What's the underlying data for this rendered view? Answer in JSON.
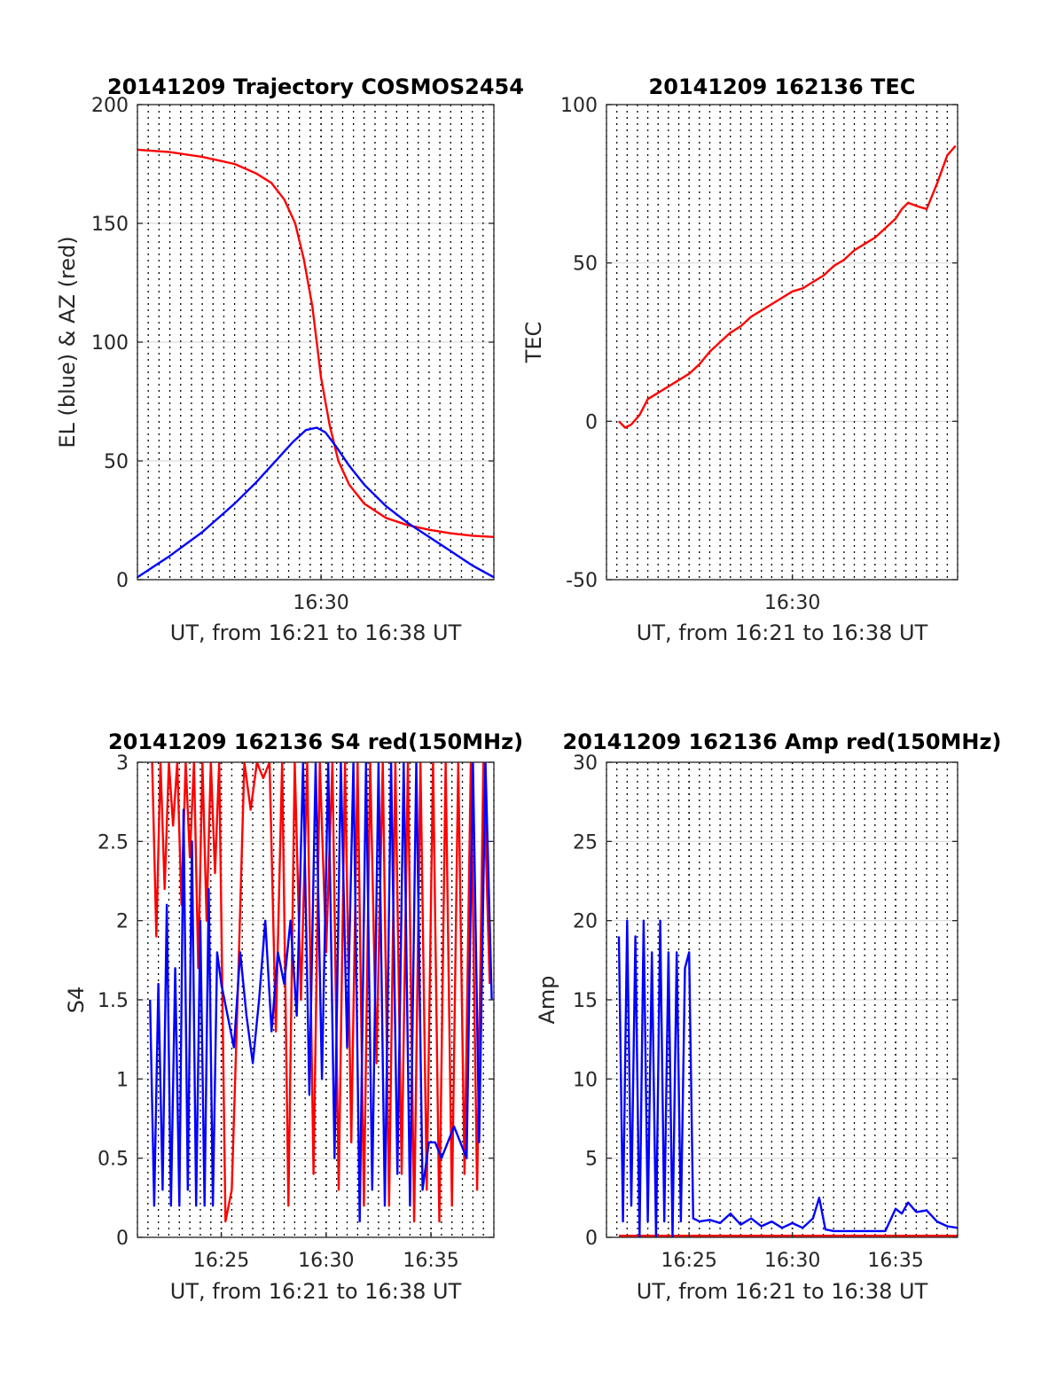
{
  "colors": {
    "el_series": "#0000ff",
    "az_series": "#ff0000",
    "tec_series": "#ff0000",
    "s4_red": "#ff0000",
    "s4_blue": "#0000ff",
    "amp_red": "#ff0000",
    "amp_blue": "#0000ff",
    "grid": "#d9d9d9",
    "vgrid": "#000000"
  },
  "chart_data": [
    {
      "id": "trajectory",
      "type": "line",
      "title": "20141209 Trajectory COSMOS2454",
      "xlabel": "UT, from 16:21 to 16:38 UT",
      "ylabel": "EL (blue) & AZ (red)",
      "xlim_minutes": [
        21.5,
        38.0
      ],
      "ylim": [
        0,
        200
      ],
      "y_ticks": [
        "0",
        "50",
        "100",
        "150",
        "200"
      ],
      "y_tick_values": [
        0,
        50,
        100,
        150,
        200
      ],
      "x_ticks": [
        "16:30"
      ],
      "x_tick_values": [
        30
      ],
      "grid": "vertical dotted every 0.5 min",
      "series": [
        {
          "name": "AZ (red)",
          "color": "#ff0000",
          "x": [
            21.5,
            23,
            24.5,
            26,
            27,
            27.7,
            28.3,
            28.8,
            29.2,
            29.6,
            30,
            30.4,
            30.8,
            31.3,
            32,
            33,
            34,
            35,
            36,
            37,
            38
          ],
          "y": [
            181,
            180,
            178,
            175,
            171,
            167,
            160,
            150,
            135,
            115,
            85,
            65,
            50,
            40,
            32,
            26,
            23,
            21,
            19.5,
            18.5,
            18
          ]
        },
        {
          "name": "EL (blue)",
          "color": "#0000ff",
          "x": [
            21.5,
            23,
            24.5,
            26,
            27,
            28,
            28.7,
            29.3,
            29.8,
            30.2,
            30.7,
            31.3,
            32,
            33,
            34,
            35,
            36,
            37,
            38
          ],
          "y": [
            1,
            10,
            20,
            32,
            41,
            51,
            58,
            63,
            64,
            62,
            56,
            48,
            40,
            31,
            24,
            18,
            12,
            6,
            1
          ]
        }
      ]
    },
    {
      "id": "tec",
      "type": "line",
      "title": "20141209 162136 TEC",
      "xlabel": "UT, from 16:21 to 16:38 UT",
      "ylabel": "TEC",
      "xlim_minutes": [
        21.0,
        38.0
      ],
      "ylim": [
        -50,
        100
      ],
      "y_ticks": [
        "-50",
        "0",
        "50",
        "100"
      ],
      "y_tick_values": [
        -50,
        0,
        50,
        100
      ],
      "x_ticks": [
        "16:30"
      ],
      "x_tick_values": [
        30
      ],
      "series": [
        {
          "name": "TEC",
          "color": "#ff0000",
          "x": [
            21.6,
            21.9,
            22.2,
            22.6,
            23,
            23.5,
            24,
            24.5,
            25,
            25.5,
            26,
            26.5,
            27,
            27.5,
            28,
            28.5,
            29,
            29.5,
            30,
            30.5,
            31,
            31.5,
            32,
            32.5,
            33,
            33.5,
            34,
            34.5,
            35,
            35.3,
            35.6,
            36,
            36.5,
            37,
            37.5,
            37.9
          ],
          "y": [
            0,
            -2,
            -1,
            2,
            7,
            9,
            11,
            13,
            15,
            18,
            22,
            25,
            28,
            30,
            33,
            35,
            37,
            39,
            41,
            42,
            44,
            46,
            49,
            51,
            54,
            56,
            58,
            61,
            64,
            67,
            69,
            68,
            67,
            75,
            84,
            87
          ]
        }
      ]
    },
    {
      "id": "s4",
      "type": "line",
      "title": "20141209 162136 S4 red(150MHz)",
      "xlabel": "UT, from 16:21 to 16:38 UT",
      "ylabel": "S4",
      "xlim_minutes": [
        21.0,
        38.0
      ],
      "ylim": [
        0,
        3
      ],
      "y_ticks": [
        "0",
        "0.5",
        "1",
        "1.5",
        "2",
        "2.5",
        "3"
      ],
      "y_tick_values": [
        0,
        0.5,
        1,
        1.5,
        2,
        2.5,
        3
      ],
      "x_ticks": [
        "16:25",
        "16:30",
        "16:35"
      ],
      "x_tick_values": [
        25,
        30,
        35
      ],
      "series": [
        {
          "name": "red",
          "color": "#ff0000",
          "x": [
            21.7,
            21.9,
            22.1,
            22.3,
            22.5,
            22.7,
            22.9,
            23.1,
            23.3,
            23.5,
            23.7,
            23.9,
            24.1,
            24.3,
            24.5,
            24.7,
            24.9,
            25.2,
            25.5,
            25.8,
            26.1,
            26.4,
            26.7,
            27.0,
            27.3,
            27.6,
            27.9,
            28.2,
            28.5,
            28.8,
            29.1,
            29.4,
            29.7,
            30.0,
            30.3,
            30.6,
            30.9,
            31.2,
            31.5,
            31.8,
            32.1,
            32.4,
            32.7,
            33.0,
            33.3,
            33.6,
            33.9,
            34.2,
            34.5,
            34.8,
            35.1,
            35.4,
            35.7,
            36.0,
            36.3,
            36.6,
            36.9,
            37.2,
            37.5,
            37.8
          ],
          "y": [
            3,
            1.9,
            3,
            2.2,
            3,
            2.6,
            3,
            2.1,
            3,
            2.4,
            3,
            1.7,
            3,
            2.0,
            3,
            2.3,
            3,
            0.1,
            0.3,
            1.6,
            3,
            2.7,
            3,
            2.9,
            3,
            1.3,
            3,
            0.2,
            3,
            1.5,
            3,
            0.4,
            3,
            1.8,
            3,
            0.3,
            3,
            0.6,
            3,
            0.2,
            3,
            1.1,
            3,
            0.2,
            3,
            0.4,
            3,
            0.1,
            3,
            0.3,
            3,
            0.1,
            3,
            0.2,
            3,
            0.4,
            3,
            0.3,
            3,
            1.6
          ]
        },
        {
          "name": "blue",
          "color": "#0000ff",
          "x": [
            21.6,
            21.8,
            22.0,
            22.2,
            22.4,
            22.6,
            22.8,
            23.0,
            23.2,
            23.4,
            23.6,
            23.8,
            24.0,
            24.2,
            24.4,
            24.6,
            24.8,
            25.0,
            25.3,
            25.6,
            25.9,
            26.2,
            26.5,
            26.8,
            27.1,
            27.4,
            27.7,
            28.0,
            28.3,
            28.6,
            28.9,
            29.2,
            29.5,
            29.8,
            30.1,
            30.4,
            30.7,
            31.0,
            31.3,
            31.6,
            31.9,
            32.2,
            32.5,
            32.8,
            33.1,
            33.4,
            33.7,
            34.0,
            34.3,
            34.6,
            34.9,
            35.2,
            35.5,
            35.8,
            36.1,
            36.4,
            36.7,
            37.0,
            37.3,
            37.6,
            37.9
          ],
          "y": [
            1.5,
            0.2,
            1.6,
            0.3,
            2.1,
            0.2,
            1.7,
            0.2,
            2.7,
            0.3,
            2.5,
            0.2,
            2.0,
            0.2,
            2.2,
            0.2,
            1.8,
            1.6,
            1.4,
            1.2,
            1.8,
            1.4,
            1.1,
            1.5,
            2.0,
            1.3,
            1.8,
            1.6,
            2.0,
            1.4,
            3,
            0.9,
            3,
            1.0,
            3,
            0.5,
            3,
            1.2,
            3,
            0.1,
            3,
            0.3,
            3,
            0.2,
            3,
            0.4,
            3,
            0.2,
            3,
            0.3,
            0.6,
            0.6,
            0.5,
            0.6,
            0.7,
            0.6,
            0.5,
            3,
            0.6,
            3,
            1.5
          ]
        }
      ]
    },
    {
      "id": "amp",
      "type": "line",
      "title": "20141209 162136 Amp red(150MHz)",
      "xlabel": "UT, from 16:21 to 16:38 UT",
      "ylabel": "Amp",
      "xlim_minutes": [
        21.0,
        38.0
      ],
      "ylim": [
        0,
        30
      ],
      "y_ticks": [
        "0",
        "5",
        "10",
        "15",
        "20",
        "25",
        "30"
      ],
      "y_tick_values": [
        0,
        5,
        10,
        15,
        20,
        25,
        30
      ],
      "x_ticks": [
        "16:25",
        "16:30",
        "16:35"
      ],
      "x_tick_values": [
        25,
        30,
        35
      ],
      "series": [
        {
          "name": "red",
          "color": "#ff0000",
          "x": [
            21.6,
            38.0
          ],
          "y": [
            0.1,
            0.1
          ]
        },
        {
          "name": "blue",
          "color": "#0000ff",
          "x": [
            21.6,
            21.8,
            22.0,
            22.2,
            22.4,
            22.6,
            22.8,
            23.0,
            23.2,
            23.4,
            23.6,
            23.8,
            24.0,
            24.2,
            24.4,
            24.6,
            24.8,
            25.0,
            25.2,
            25.5,
            26.0,
            26.5,
            27.0,
            27.5,
            28.0,
            28.5,
            29.0,
            29.5,
            30.0,
            30.5,
            31.0,
            31.3,
            31.6,
            32.0,
            32.5,
            33.0,
            33.5,
            34.0,
            34.5,
            35.0,
            35.3,
            35.6,
            36.0,
            36.5,
            37.0,
            37.5,
            38.0
          ],
          "y": [
            19,
            1,
            20,
            2,
            19,
            0,
            20,
            1,
            18,
            0,
            20,
            1,
            18,
            0,
            18,
            1,
            17,
            18,
            1.2,
            1.0,
            1.1,
            0.9,
            1.5,
            0.8,
            1.2,
            0.7,
            1.0,
            0.6,
            0.9,
            0.6,
            1.2,
            2.5,
            0.5,
            0.4,
            0.4,
            0.4,
            0.4,
            0.4,
            0.4,
            1.8,
            1.5,
            2.2,
            1.6,
            1.7,
            1.0,
            0.7,
            0.6
          ]
        }
      ]
    }
  ]
}
